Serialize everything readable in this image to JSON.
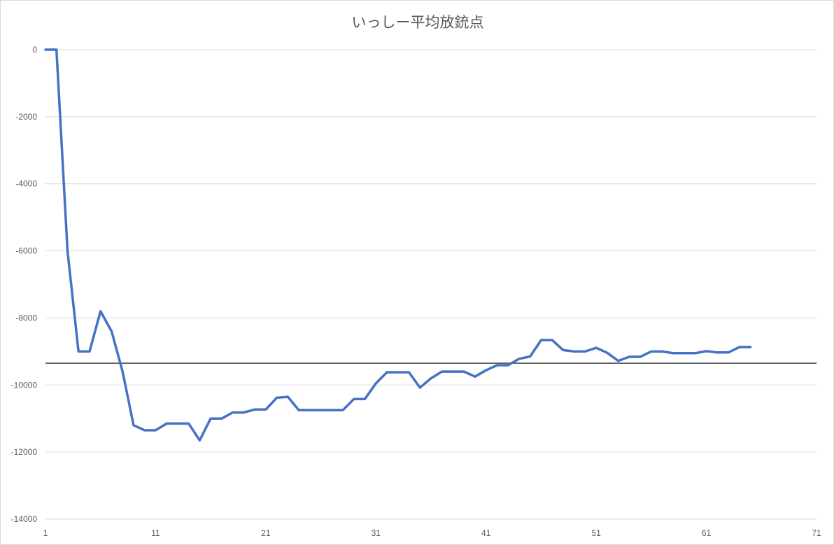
{
  "chart_data": {
    "type": "line",
    "title": "いっしー平均放銃点",
    "xlabel": "",
    "ylabel": "",
    "xlim": [
      1,
      71
    ],
    "ylim": [
      -14000,
      0
    ],
    "x_ticks": [
      1,
      11,
      21,
      31,
      41,
      51,
      61,
      71
    ],
    "y_ticks": [
      0,
      -2000,
      -4000,
      -6000,
      -8000,
      -10000,
      -12000,
      -14000
    ],
    "grid": true,
    "legend": "none",
    "colors": {
      "series": "#4472c4",
      "reference": "#404040",
      "grid": "#d9d9d9",
      "text": "#595959"
    },
    "series": [
      {
        "x": [
          1,
          2,
          3,
          4,
          5,
          6,
          7,
          8,
          9,
          10,
          11,
          12,
          13,
          14,
          15,
          16,
          17,
          18,
          19,
          20,
          21,
          22,
          23,
          24,
          25,
          26,
          27,
          28,
          29,
          30,
          31,
          32,
          33,
          34,
          35,
          36,
          37,
          38,
          39,
          40,
          41,
          42,
          43,
          44,
          45,
          46,
          47,
          48,
          49,
          50,
          51,
          52,
          53,
          54,
          55,
          56,
          57,
          58,
          59,
          60,
          61,
          62,
          63,
          64,
          65
        ],
        "values": [
          0,
          0,
          -6000,
          -9000,
          -9000,
          -7800,
          -8400,
          -9600,
          -11200,
          -11350,
          -11350,
          -11150,
          -11150,
          -11150,
          -11650,
          -11000,
          -11000,
          -10820,
          -10820,
          -10730,
          -10730,
          -10380,
          -10350,
          -10750,
          -10750,
          -10750,
          -10750,
          -10750,
          -10420,
          -10420,
          -9950,
          -9620,
          -9620,
          -9620,
          -10080,
          -9800,
          -9600,
          -9600,
          -9600,
          -9750,
          -9560,
          -9410,
          -9410,
          -9220,
          -9150,
          -8660,
          -8660,
          -8960,
          -9000,
          -9000,
          -8890,
          -9040,
          -9280,
          -9160,
          -9160,
          -9000,
          -9000,
          -9050,
          -9050,
          -9050,
          -8990,
          -9030,
          -9030,
          -8870,
          -8870
        ]
      }
    ],
    "reference_line": {
      "y": -9350
    }
  }
}
